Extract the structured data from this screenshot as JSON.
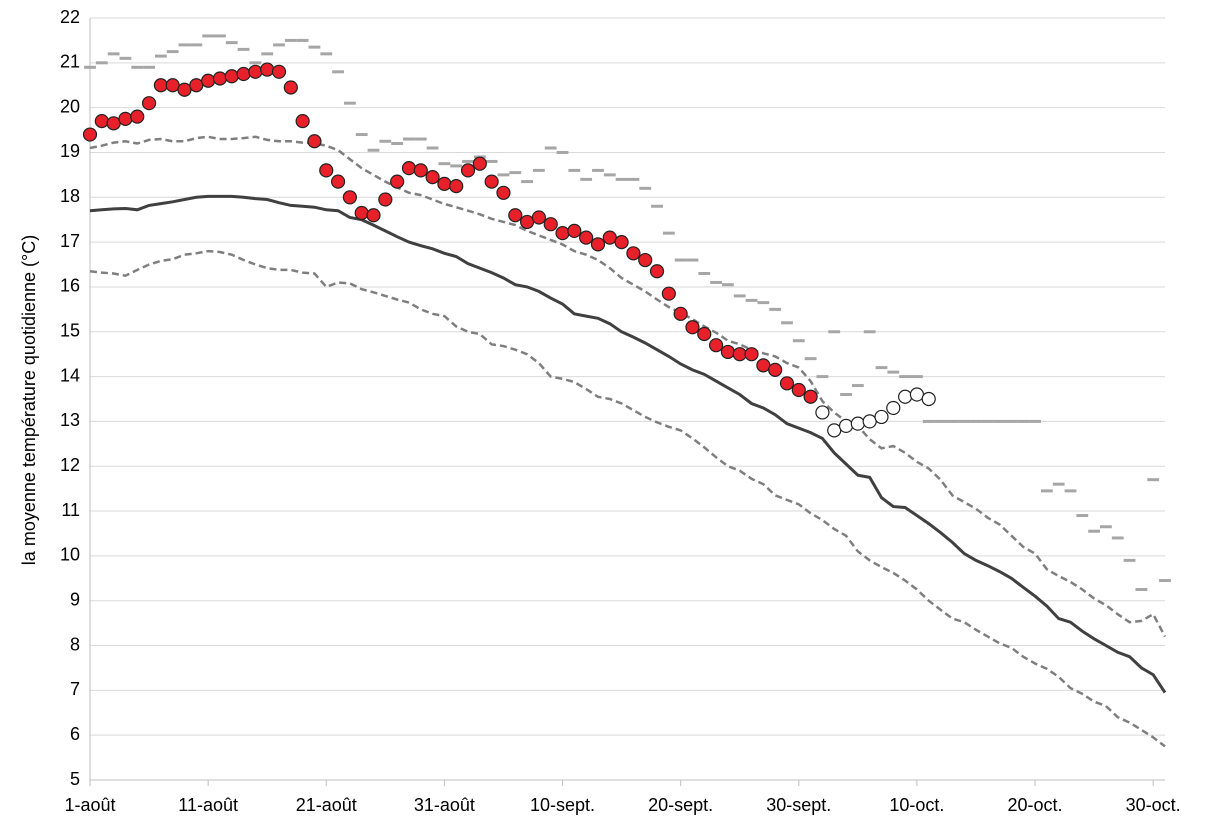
{
  "chart_data": {
    "type": "line",
    "y_label": "la moyenne température quotidienne (°C)",
    "categories": [
      "1-août",
      null,
      null,
      null,
      null,
      null,
      null,
      null,
      null,
      null,
      "11-août",
      null,
      null,
      null,
      null,
      null,
      null,
      null,
      null,
      null,
      "21-août",
      null,
      null,
      null,
      null,
      null,
      null,
      null,
      null,
      null,
      "31-août",
      null,
      null,
      null,
      null,
      null,
      null,
      null,
      null,
      null,
      "10-sept.",
      null,
      null,
      null,
      null,
      null,
      null,
      null,
      null,
      null,
      "20-sept.",
      null,
      null,
      null,
      null,
      null,
      null,
      null,
      null,
      null,
      "30-sept.",
      null,
      null,
      null,
      null,
      null,
      null,
      null,
      null,
      null,
      "10-oct.",
      null,
      null,
      null,
      null,
      null,
      null,
      null,
      null,
      null,
      "20-oct.",
      null,
      null,
      null,
      null,
      null,
      null,
      null,
      null,
      null,
      "30-oct.",
      null
    ],
    "ylim": [
      5,
      22
    ],
    "yticks": [
      5,
      6,
      7,
      8,
      9,
      10,
      11,
      12,
      13,
      14,
      15,
      16,
      17,
      18,
      19,
      20,
      21,
      22
    ],
    "grid": true,
    "series": [
      {
        "color": "#a6a6a6",
        "line": null,
        "marker": "dash",
        "values": [
          20.9,
          21.0,
          21.2,
          21.1,
          20.9,
          20.9,
          21.15,
          21.25,
          21.4,
          21.4,
          21.6,
          21.6,
          21.45,
          21.3,
          21.0,
          21.2,
          21.4,
          21.5,
          21.5,
          21.35,
          21.2,
          20.8,
          20.1,
          19.4,
          19.05,
          19.25,
          19.2,
          19.3,
          19.3,
          19.1,
          18.75,
          18.7,
          18.8,
          18.9,
          18.8,
          18.5,
          18.55,
          18.35,
          18.6,
          19.1,
          19.0,
          18.6,
          18.4,
          18.6,
          18.5,
          18.4,
          18.4,
          18.2,
          17.8,
          17.2,
          16.6,
          16.6,
          16.3,
          16.1,
          16.05,
          15.8,
          15.7,
          15.65,
          15.5,
          15.2,
          14.8,
          14.4,
          14.0,
          15.0,
          13.6,
          13.8,
          15.0,
          14.2,
          14.1,
          14.0,
          14.0,
          13.0,
          13.0,
          13.0,
          13.0,
          13.0,
          13.0,
          13.0,
          13.0,
          13.0,
          13.0,
          11.45,
          11.6,
          11.45,
          10.9,
          10.55,
          10.65,
          10.4,
          9.9,
          9.25,
          11.7,
          9.45
        ]
      },
      {
        "color": "#7f7f7f",
        "line": "dashed",
        "marker": null,
        "values": [
          16.35,
          16.32,
          16.3,
          16.25,
          16.38,
          16.5,
          16.58,
          16.62,
          16.72,
          16.75,
          16.8,
          16.78,
          16.72,
          16.6,
          16.5,
          16.42,
          16.38,
          16.38,
          16.32,
          16.3,
          16.0,
          16.1,
          16.08,
          15.95,
          15.88,
          15.8,
          15.72,
          15.65,
          15.5,
          15.4,
          15.35,
          15.12,
          15.0,
          14.95,
          14.72,
          14.68,
          14.6,
          14.5,
          14.3,
          14.0,
          13.95,
          13.88,
          13.72,
          13.55,
          13.5,
          13.4,
          13.25,
          13.1,
          12.98,
          12.88,
          12.8,
          12.62,
          12.42,
          12.2,
          12.0,
          11.9,
          11.72,
          11.6,
          11.35,
          11.25,
          11.15,
          10.95,
          10.8,
          10.6,
          10.45,
          10.1,
          9.9,
          9.75,
          9.62,
          9.45,
          9.25,
          9.0,
          8.8,
          8.6,
          8.52,
          8.35,
          8.2,
          8.05,
          7.95,
          7.75,
          7.6,
          7.48,
          7.3,
          7.05,
          6.92,
          6.75,
          6.65,
          6.4,
          6.28,
          6.12,
          5.95,
          5.75
        ]
      },
      {
        "color": "#7f7f7f",
        "line": "dashed",
        "marker": null,
        "values": [
          19.1,
          19.15,
          19.22,
          19.25,
          19.2,
          19.28,
          19.3,
          19.25,
          19.25,
          19.32,
          19.35,
          19.3,
          19.3,
          19.32,
          19.35,
          19.28,
          19.25,
          19.25,
          19.22,
          19.2,
          19.15,
          19.05,
          18.85,
          18.65,
          18.5,
          18.35,
          18.22,
          18.1,
          18.05,
          17.95,
          17.85,
          17.78,
          17.7,
          17.62,
          17.52,
          17.45,
          17.38,
          17.25,
          17.15,
          17.05,
          16.95,
          16.8,
          16.72,
          16.6,
          16.42,
          16.2,
          16.05,
          15.9,
          15.72,
          15.55,
          15.42,
          15.28,
          15.12,
          14.98,
          14.8,
          14.72,
          14.6,
          14.52,
          14.45,
          14.3,
          14.2,
          13.9,
          13.45,
          13.2,
          13.0,
          12.9,
          12.6,
          12.4,
          12.45,
          12.3,
          12.1,
          11.95,
          11.7,
          11.35,
          11.2,
          11.05,
          10.85,
          10.7,
          10.45,
          10.2,
          10.05,
          9.7,
          9.55,
          9.42,
          9.25,
          9.05,
          8.9,
          8.7,
          8.52,
          8.55,
          8.7,
          8.2
        ]
      },
      {
        "color": "#404040",
        "line": "solid",
        "marker": null,
        "values": [
          17.7,
          17.72,
          17.74,
          17.75,
          17.72,
          17.82,
          17.86,
          17.9,
          17.95,
          18.0,
          18.02,
          18.02,
          18.02,
          18.0,
          17.97,
          17.95,
          17.88,
          17.82,
          17.8,
          17.78,
          17.72,
          17.7,
          17.55,
          17.5,
          17.38,
          17.25,
          17.12,
          17.0,
          16.92,
          16.85,
          16.75,
          16.68,
          16.52,
          16.42,
          16.32,
          16.2,
          16.05,
          16.0,
          15.9,
          15.75,
          15.62,
          15.4,
          15.35,
          15.3,
          15.18,
          15.0,
          14.88,
          14.75,
          14.6,
          14.45,
          14.28,
          14.15,
          14.05,
          13.9,
          13.75,
          13.6,
          13.4,
          13.3,
          13.15,
          12.95,
          12.85,
          12.75,
          12.62,
          12.3,
          12.05,
          11.8,
          11.75,
          11.3,
          11.1,
          11.08,
          10.9,
          10.72,
          10.52,
          10.3,
          10.05,
          9.9,
          9.78,
          9.65,
          9.5,
          9.3,
          9.1,
          8.88,
          8.6,
          8.52,
          8.32,
          8.15,
          8.0,
          7.85,
          7.75,
          7.5,
          7.35,
          6.95
        ]
      },
      {
        "color": "#e8202a",
        "line": null,
        "marker": "circle",
        "values": [
          19.4,
          19.7,
          19.65,
          19.75,
          19.8,
          20.1,
          20.5,
          20.5,
          20.4,
          20.5,
          20.6,
          20.65,
          20.7,
          20.75,
          20.8,
          20.85,
          20.8,
          20.45,
          19.7,
          19.25,
          18.6,
          18.35,
          18.0,
          17.65,
          17.6,
          17.95,
          18.35,
          18.65,
          18.6,
          18.45,
          18.3,
          18.25,
          18.6,
          18.75,
          18.35,
          18.1,
          17.6,
          17.45,
          17.55,
          17.4,
          17.2,
          17.25,
          17.1,
          16.95,
          17.1,
          17.0,
          16.75,
          16.6,
          16.35,
          15.85,
          15.4,
          15.1,
          14.95,
          14.7,
          14.55,
          14.5,
          14.5,
          14.25,
          14.15,
          13.85,
          13.7,
          13.55,
          null,
          null,
          null,
          null,
          null,
          null,
          null,
          null,
          null,
          null,
          null,
          null,
          null,
          null,
          null,
          null,
          null,
          null,
          null,
          null,
          null,
          null,
          null,
          null,
          null,
          null,
          null,
          null,
          null,
          null
        ]
      },
      {
        "color": "#ffffff",
        "line": null,
        "marker": "circle",
        "values": [
          null,
          null,
          null,
          null,
          null,
          null,
          null,
          null,
          null,
          null,
          null,
          null,
          null,
          null,
          null,
          null,
          null,
          null,
          null,
          null,
          null,
          null,
          null,
          null,
          null,
          null,
          null,
          null,
          null,
          null,
          null,
          null,
          null,
          null,
          null,
          null,
          null,
          null,
          null,
          null,
          null,
          null,
          null,
          null,
          null,
          null,
          null,
          null,
          null,
          null,
          null,
          null,
          null,
          null,
          null,
          null,
          null,
          null,
          null,
          null,
          null,
          null,
          13.2,
          12.8,
          12.9,
          12.95,
          13.0,
          13.1,
          13.3,
          13.55,
          13.6,
          13.5,
          null,
          null,
          null,
          null,
          null,
          null,
          null,
          null,
          null,
          null,
          null,
          null,
          null,
          null,
          null,
          null,
          null,
          null,
          null,
          null
        ]
      }
    ]
  }
}
